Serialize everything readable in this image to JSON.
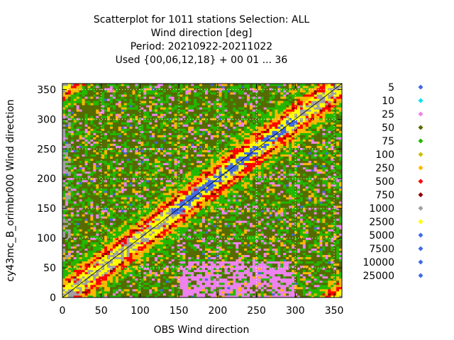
{
  "chart_data": {
    "type": "heatmap",
    "title_lines": [
      "Scatterplot for 1011 stations Selection: ALL",
      "Wind direction [deg]",
      "Period: 20210922-20211022",
      "Used {00,06,12,18} + 00 01 ... 36"
    ],
    "xlabel": "OBS Wind direction",
    "ylabel": "cy43mc_B_orimbr000 Wind direction",
    "xlim": [
      0,
      360
    ],
    "ylim": [
      0,
      360
    ],
    "xticks": [
      0,
      50,
      100,
      150,
      200,
      250,
      300,
      350
    ],
    "yticks": [
      0,
      50,
      100,
      150,
      200,
      250,
      300,
      350
    ],
    "grid": true,
    "diagonal_line": true,
    "legend_placement": "right",
    "legend": [
      {
        "label": "5",
        "color": "#4169e1"
      },
      {
        "label": "10",
        "color": "#00e5ee"
      },
      {
        "label": "25",
        "color": "#ee82ee"
      },
      {
        "label": "50",
        "color": "#556b00"
      },
      {
        "label": "75",
        "color": "#22b800"
      },
      {
        "label": "100",
        "color": "#c8c000"
      },
      {
        "label": "250",
        "color": "#ffb800"
      },
      {
        "label": "500",
        "color": "#ff0000"
      },
      {
        "label": "750",
        "color": "#8b0000"
      },
      {
        "label": "1000",
        "color": "#a0a0a0"
      },
      {
        "label": "2500",
        "color": "#ffff00"
      },
      {
        "label": "5000",
        "color": "#4169e1"
      },
      {
        "label": "7500",
        "color": "#4169e1"
      },
      {
        "label": "10000",
        "color": "#4169e1"
      },
      {
        "label": "25000",
        "color": "#4169e1"
      }
    ]
  }
}
